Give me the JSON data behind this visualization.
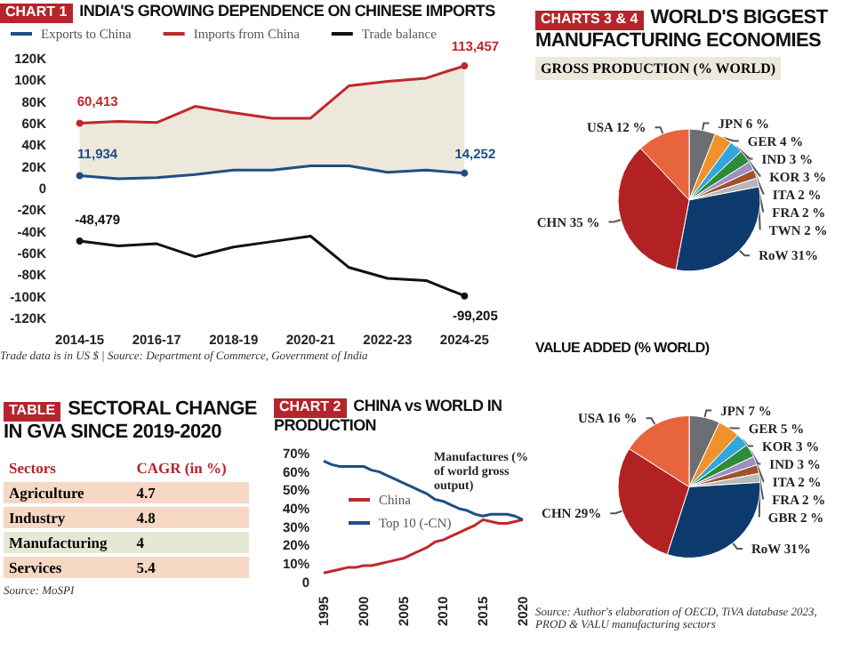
{
  "chart_data": [
    {
      "type": "line",
      "title": "INDIA'S GROWING DEPENDENCE ON CHINESE IMPORTS",
      "annotations": [
        "CHART 1",
        "Trade data is in US $ | Source: Department of Commerce, Government of India"
      ],
      "categories": [
        "2014-15",
        null,
        "2016-17",
        null,
        "2018-19",
        null,
        "2020-21",
        null,
        "2022-23",
        null,
        "2024-25"
      ],
      "series": [
        {
          "name": "Exports to China",
          "color": "#1f4e85",
          "values": [
            11934,
            9000,
            10000,
            13000,
            17000,
            17000,
            21000,
            21000,
            15000,
            17000,
            14252
          ],
          "value_labels": [
            "11,934",
            null,
            null,
            null,
            null,
            null,
            null,
            null,
            null,
            null,
            "14,252"
          ]
        },
        {
          "name": "Imports from China",
          "color": "#c0272d",
          "values": [
            60413,
            62000,
            61000,
            76000,
            70000,
            65000,
            65000,
            95000,
            99000,
            102000,
            113457
          ],
          "value_labels": [
            "60,413",
            null,
            null,
            null,
            null,
            null,
            null,
            null,
            null,
            null,
            "113,457"
          ],
          "lower": [
            11934,
            9000,
            10000,
            13000,
            17000,
            17000,
            21000,
            21000,
            15000,
            17000,
            14252
          ],
          "upper": [
            60413,
            62000,
            61000,
            76000,
            70000,
            65000,
            65000,
            95000,
            99000,
            102000,
            113457
          ]
        },
        {
          "name": "Trade balance",
          "color": "#111111",
          "values": [
            -48479,
            -53000,
            -51000,
            -63000,
            -54000,
            -49000,
            -44000,
            -73000,
            -83000,
            -85000,
            -99205
          ],
          "value_labels": [
            "-48,479",
            null,
            null,
            null,
            null,
            null,
            null,
            null,
            null,
            null,
            "-99,205"
          ]
        }
      ],
      "ylim": [
        -120000,
        120000
      ],
      "yticks": [
        {
          "value": -120000,
          "label": "-120K"
        },
        {
          "value": -100000,
          "label": "-100K"
        },
        {
          "value": -80000,
          "label": "-80K"
        },
        {
          "value": -60000,
          "label": "-60K"
        },
        {
          "value": -40000,
          "label": "-40K"
        },
        {
          "value": -20000,
          "label": "-20K"
        },
        0,
        {
          "value": 20000,
          "label": "20K"
        },
        {
          "value": 40000,
          "label": "40K"
        },
        {
          "value": 60000,
          "label": "60K"
        },
        {
          "value": 80000,
          "label": "80K"
        },
        {
          "value": 100000,
          "label": "100K"
        },
        {
          "value": 120000,
          "label": "120K"
        }
      ],
      "grid": false,
      "legend": "top"
    },
    {
      "type": "other",
      "title": "SECTORAL CHANGE IN GVA SINCE 2019-2020",
      "annotations": [
        "TABLE",
        "Source: MoSPI"
      ],
      "xlabel": "Sectors",
      "ylabel": "CAGR (in %)",
      "categories": [
        "Agriculture",
        "Industry",
        "Manufacturing",
        "Services"
      ],
      "values": [
        4.7,
        4.8,
        4,
        5.4
      ],
      "colors": [
        "#f6d8c4",
        "#f6d8c4",
        "#e6e8d6",
        "#f6d8c4"
      ],
      "data_labels": true
    },
    {
      "type": "line",
      "title": "CHINA vs WORLD IN PRODUCTION",
      "annotations": [
        "CHART 2",
        "Manufactures (% of world gross output)"
      ],
      "x": [
        1995,
        1996,
        1997,
        1998,
        1999,
        2000,
        2001,
        2002,
        2003,
        2004,
        2005,
        2006,
        2007,
        2008,
        2009,
        2010,
        2011,
        2012,
        2013,
        2014,
        2015,
        2016,
        2017,
        2018,
        2019,
        2020
      ],
      "series": [
        {
          "name": "China",
          "color": "#c0272d",
          "values": [
            5,
            6,
            7,
            8,
            8,
            9,
            9,
            10,
            11,
            12,
            13,
            15,
            17,
            19,
            22,
            23,
            25,
            27,
            29,
            31,
            34,
            33,
            32,
            32,
            33,
            34
          ]
        },
        {
          "name": "Top 10 (-CN)",
          "color": "#1f4e85",
          "values": [
            66,
            64,
            63,
            63,
            63,
            63,
            61,
            60,
            58,
            56,
            54,
            52,
            50,
            48,
            45,
            44,
            42,
            40,
            39,
            37,
            36,
            37,
            37,
            37,
            36,
            34
          ]
        }
      ],
      "xlim": [
        1995,
        2020
      ],
      "xticks": [
        1995,
        2000,
        2005,
        2010,
        2015,
        2020
      ],
      "ylim": [
        0,
        70
      ],
      "yticks": [
        0,
        {
          "value": 10,
          "label": "10%"
        },
        {
          "value": 20,
          "label": "20%"
        },
        {
          "value": 30,
          "label": "30%"
        },
        {
          "value": 40,
          "label": "40%"
        },
        {
          "value": 50,
          "label": "50%"
        },
        {
          "value": 60,
          "label": "60%"
        },
        {
          "value": 70,
          "label": "70%"
        }
      ],
      "grid": false,
      "legend": "left"
    },
    {
      "type": "pie",
      "title": "WORLD'S BIGGEST MANUFACTURING ECONOMIES",
      "subtitle": "GROSS PRODUCTION (% WORLD)",
      "annotations": [
        "CHARTS 3 & 4"
      ],
      "categories": [
        "JPN",
        "GER",
        "IND",
        "KOR",
        "ITA",
        "FRA",
        "TWN",
        "RoW",
        "CHN",
        "USA"
      ],
      "values": [
        6,
        4,
        3,
        3,
        2,
        2,
        2,
        31,
        35,
        12
      ],
      "value_labels": [
        "6 %",
        "4 %",
        "3 %",
        "3 %",
        "2 %",
        "2 %",
        "2 %",
        "31%",
        "35 %",
        "12 %"
      ],
      "colors": [
        "#6d6e71",
        "#f0922b",
        "#2fa6de",
        "#2e8b3a",
        "#9b8fc4",
        "#a0522d",
        "#b8b8b8",
        "#0d3b6e",
        "#b22222",
        "#e8643c"
      ]
    },
    {
      "type": "pie",
      "title": "VALUE ADDED (% WORLD)",
      "annotations": [
        "Source: Author's elaboration of OECD, TiVA database 2023, PROD & VALU manufacturing sectors"
      ],
      "categories": [
        "JPN",
        "GER",
        "KOR",
        "IND",
        "ITA",
        "FRA",
        "GBR",
        "RoW",
        "CHN",
        "USA"
      ],
      "values": [
        7,
        5,
        3,
        3,
        2,
        2,
        2,
        31,
        29,
        16
      ],
      "value_labels": [
        "7 %",
        "5 %",
        "3 %",
        "3 %",
        "2 %",
        "2 %",
        "2 %",
        "31%",
        "29%",
        "16 %"
      ],
      "colors": [
        "#6d6e71",
        "#f0922b",
        "#2fa6de",
        "#2e8b3a",
        "#9b8fc4",
        "#a0522d",
        "#b8b8b8",
        "#0d3b6e",
        "#b22222",
        "#e8643c"
      ]
    }
  ]
}
